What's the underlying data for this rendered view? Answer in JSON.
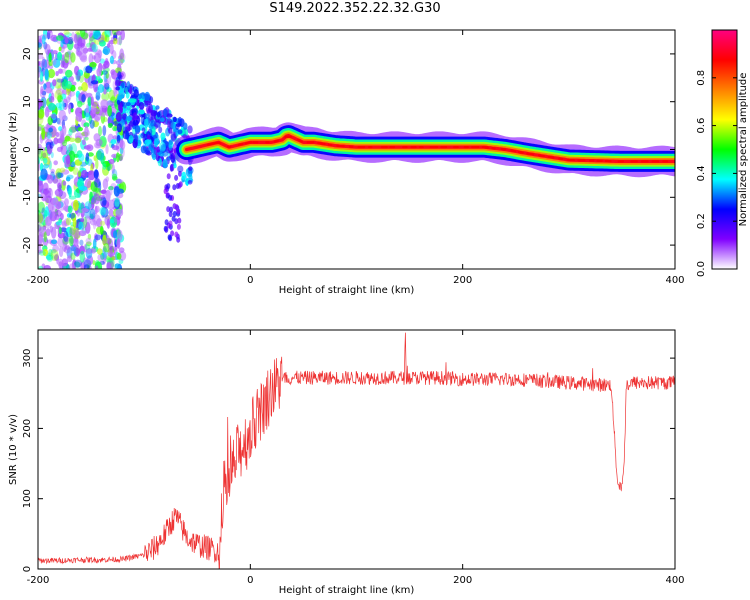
{
  "title": "S149.2022.352.22.32.G30",
  "chart_data": [
    {
      "type": "heatmap",
      "xlabel": "Height of straight line (km)",
      "ylabel": "Frequency (Hz)",
      "xlim": [
        -200,
        400
      ],
      "ylim": [
        -25,
        25
      ],
      "xticks": [
        -200,
        0,
        200,
        400
      ],
      "yticks": [
        -20,
        -10,
        0,
        10,
        20
      ],
      "colorbar": {
        "label": "Normalized spectral amplitude",
        "range": [
          0,
          1
        ],
        "ticks": [
          0.0,
          0.2,
          0.4,
          0.6,
          0.8
        ],
        "colors": [
          "#ffffff",
          "#8000ff",
          "#0000ff",
          "#00ffff",
          "#00ff00",
          "#ffff00",
          "#ff8000",
          "#ff0000",
          "#ff0080"
        ]
      },
      "ridge": {
        "x": [
          -60,
          -50,
          -40,
          -30,
          -20,
          -10,
          0,
          10,
          20,
          30,
          35,
          40,
          50,
          60,
          80,
          100,
          150,
          200,
          220,
          240,
          260,
          280,
          300,
          350,
          400
        ],
        "frequency": [
          0,
          0.5,
          1,
          1.5,
          0.5,
          1,
          1.5,
          1.5,
          1.5,
          2,
          3,
          2.5,
          1.5,
          1.5,
          0.8,
          0.5,
          0.5,
          0.5,
          0.5,
          0,
          -0.8,
          -1.5,
          -2.2,
          -2.5,
          -2.5
        ]
      }
    },
    {
      "type": "line",
      "xlabel": "Height of straight line (km)",
      "ylabel": "SNR (10 * v/v)",
      "xlim": [
        -200,
        400
      ],
      "ylim": [
        0,
        340
      ],
      "xticks": [
        -200,
        0,
        200,
        400
      ],
      "yticks": [
        0,
        100,
        200,
        300
      ],
      "color": "#ee3333",
      "series": [
        {
          "x": [
            -200,
            -180,
            -160,
            -140,
            -120,
            -100,
            -90,
            -80,
            -75,
            -70,
            -65,
            -60,
            -50,
            -40,
            -35,
            -30,
            -27,
            -25,
            -20,
            -15,
            -10,
            -5,
            0,
            5,
            10,
            15,
            20,
            25,
            30,
            40,
            50,
            80,
            100,
            120,
            145,
            146,
            147,
            150,
            180,
            200,
            250,
            300,
            330,
            340,
            345,
            347,
            350,
            352,
            353,
            354,
            356,
            360,
            380,
            400
          ],
          "y": [
            12,
            12,
            13,
            13,
            14,
            20,
            30,
            50,
            65,
            75,
            60,
            45,
            35,
            30,
            28,
            25,
            40,
            110,
            120,
            150,
            170,
            180,
            195,
            210,
            225,
            240,
            255,
            262,
            270,
            272,
            272,
            272,
            272,
            272,
            272,
            330,
            272,
            272,
            272,
            270,
            270,
            265,
            262,
            262,
            140,
            118,
            120,
            140,
            200,
            262,
            262,
            265,
            265,
            265
          ]
        }
      ]
    }
  ]
}
